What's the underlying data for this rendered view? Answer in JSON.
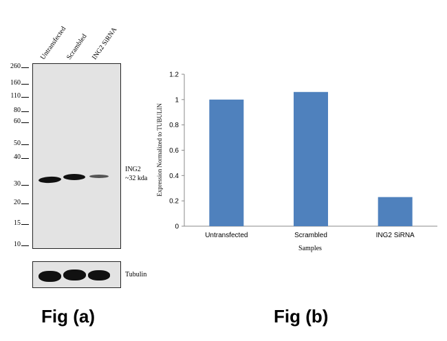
{
  "fig_a": {
    "lanes": [
      "Untransfected",
      "Scrambled",
      "ING2 SiRNA"
    ],
    "markers": [
      "260",
      "160",
      "110",
      "80",
      "60",
      "50",
      "40",
      "30",
      "20",
      "15",
      "10"
    ],
    "band_label_1": "ING2",
    "band_label_2": "~32 kda",
    "loading_label": "Tubulin",
    "title": "Fig (a)"
  },
  "fig_b": {
    "title": "Fig (b)"
  },
  "chart_data": {
    "type": "bar",
    "categories": [
      "Untransfected",
      "Scrambled",
      "ING2 SiRNA"
    ],
    "values": [
      1.0,
      1.06,
      0.23
    ],
    "title": "",
    "xlabel": "Samples",
    "ylabel": "Expression Normalized to TUBULIN",
    "ylim": [
      0,
      1.2
    ],
    "yticks": [
      "0",
      "0.2",
      "0.4",
      "0.6",
      "0.8",
      "1",
      "1.2"
    ],
    "bar_color": "#4f81bd",
    "grid": false
  }
}
